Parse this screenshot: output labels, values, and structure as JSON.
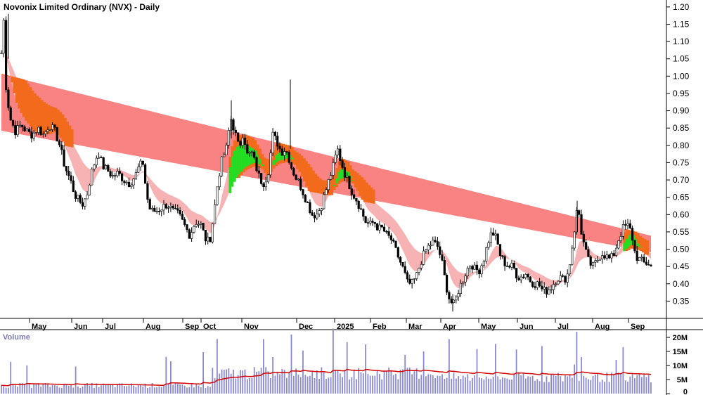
{
  "chart_data": {
    "type": "candlestick",
    "title": "Novonix Limited Ordinary (NVX) - Daily",
    "y_ticks": [
      "1.20",
      "1.15",
      "1.10",
      "1.05",
      "1.00",
      "0.95",
      "0.90",
      "0.85",
      "0.80",
      "0.75",
      "0.70",
      "0.65",
      "0.60",
      "0.55",
      "0.50",
      "0.45",
      "0.40",
      "0.35"
    ],
    "ylim": [
      0.3,
      1.22
    ],
    "x_ticks": [
      "May",
      "Jun",
      "Jul",
      "Aug",
      "Sep",
      "Oct",
      "Nov",
      "Dec",
      "2025",
      "Feb",
      "Mar",
      "Apr",
      "May",
      "Jun",
      "Jul",
      "Aug",
      "Sep"
    ],
    "price_path": [
      [
        0,
        1.0
      ],
      [
        3,
        1.1
      ],
      [
        5,
        1.18
      ],
      [
        8,
        0.98
      ],
      [
        14,
        0.88
      ],
      [
        22,
        0.84
      ],
      [
        30,
        0.86
      ],
      [
        38,
        0.84
      ],
      [
        46,
        0.83
      ],
      [
        54,
        0.85
      ],
      [
        62,
        0.83
      ],
      [
        70,
        0.86
      ],
      [
        78,
        0.84
      ],
      [
        85,
        0.8
      ],
      [
        92,
        0.74
      ],
      [
        100,
        0.7
      ],
      [
        106,
        0.66
      ],
      [
        112,
        0.64
      ],
      [
        118,
        0.63
      ],
      [
        124,
        0.66
      ],
      [
        130,
        0.72
      ],
      [
        136,
        0.76
      ],
      [
        140,
        0.78
      ],
      [
        146,
        0.74
      ],
      [
        152,
        0.73
      ],
      [
        160,
        0.71
      ],
      [
        168,
        0.72
      ],
      [
        176,
        0.7
      ],
      [
        184,
        0.69
      ],
      [
        192,
        0.71
      ],
      [
        198,
        0.74
      ],
      [
        204,
        0.75
      ],
      [
        208,
        0.66
      ],
      [
        214,
        0.61
      ],
      [
        222,
        0.61
      ],
      [
        230,
        0.62
      ],
      [
        238,
        0.63
      ],
      [
        246,
        0.61
      ],
      [
        254,
        0.6
      ],
      [
        262,
        0.57
      ],
      [
        270,
        0.54
      ],
      [
        278,
        0.58
      ],
      [
        286,
        0.57
      ],
      [
        292,
        0.53
      ],
      [
        298,
        0.52
      ],
      [
        304,
        0.6
      ],
      [
        310,
        0.7
      ],
      [
        316,
        0.76
      ],
      [
        322,
        0.79
      ],
      [
        328,
        0.88
      ],
      [
        334,
        0.84
      ],
      [
        340,
        0.79
      ],
      [
        346,
        0.84
      ],
      [
        352,
        0.77
      ],
      [
        358,
        0.78
      ],
      [
        364,
        0.74
      ],
      [
        370,
        0.7
      ],
      [
        376,
        0.69
      ],
      [
        382,
        0.73
      ],
      [
        388,
        0.83
      ],
      [
        394,
        0.81
      ],
      [
        400,
        0.78
      ],
      [
        406,
        0.79
      ],
      [
        410,
        0.77
      ],
      [
        414,
        0.74
      ],
      [
        420,
        0.71
      ],
      [
        426,
        0.69
      ],
      [
        432,
        0.66
      ],
      [
        438,
        0.63
      ],
      [
        444,
        0.6
      ],
      [
        450,
        0.6
      ],
      [
        456,
        0.62
      ],
      [
        462,
        0.66
      ],
      [
        468,
        0.7
      ],
      [
        474,
        0.74
      ],
      [
        480,
        0.79
      ],
      [
        484,
        0.76
      ],
      [
        490,
        0.72
      ],
      [
        496,
        0.69
      ],
      [
        502,
        0.66
      ],
      [
        508,
        0.64
      ],
      [
        514,
        0.61
      ],
      [
        520,
        0.58
      ],
      [
        526,
        0.57
      ],
      [
        532,
        0.58
      ],
      [
        538,
        0.56
      ],
      [
        544,
        0.56
      ],
      [
        550,
        0.54
      ],
      [
        556,
        0.53
      ],
      [
        562,
        0.5
      ],
      [
        568,
        0.47
      ],
      [
        574,
        0.44
      ],
      [
        580,
        0.4
      ],
      [
        586,
        0.4
      ],
      [
        592,
        0.42
      ],
      [
        598,
        0.46
      ],
      [
        604,
        0.49
      ],
      [
        610,
        0.51
      ],
      [
        616,
        0.52
      ],
      [
        622,
        0.51
      ],
      [
        628,
        0.47
      ],
      [
        634,
        0.4
      ],
      [
        640,
        0.35
      ],
      [
        646,
        0.34
      ],
      [
        652,
        0.38
      ],
      [
        658,
        0.41
      ],
      [
        664,
        0.44
      ],
      [
        670,
        0.46
      ],
      [
        676,
        0.44
      ],
      [
        682,
        0.44
      ],
      [
        688,
        0.47
      ],
      [
        694,
        0.52
      ],
      [
        700,
        0.55
      ],
      [
        706,
        0.53
      ],
      [
        712,
        0.48
      ],
      [
        718,
        0.46
      ],
      [
        724,
        0.45
      ],
      [
        730,
        0.45
      ],
      [
        736,
        0.42
      ],
      [
        742,
        0.42
      ],
      [
        748,
        0.43
      ],
      [
        754,
        0.41
      ],
      [
        760,
        0.4
      ],
      [
        766,
        0.4
      ],
      [
        772,
        0.38
      ],
      [
        778,
        0.38
      ],
      [
        784,
        0.39
      ],
      [
        790,
        0.41
      ],
      [
        796,
        0.42
      ],
      [
        802,
        0.41
      ],
      [
        808,
        0.43
      ],
      [
        812,
        0.48
      ],
      [
        818,
        0.57
      ],
      [
        822,
        0.63
      ],
      [
        826,
        0.56
      ],
      [
        832,
        0.5
      ],
      [
        838,
        0.46
      ],
      [
        844,
        0.45
      ],
      [
        850,
        0.47
      ],
      [
        856,
        0.49
      ],
      [
        862,
        0.48
      ],
      [
        868,
        0.47
      ],
      [
        874,
        0.49
      ],
      [
        880,
        0.53
      ],
      [
        886,
        0.56
      ],
      [
        892,
        0.57
      ],
      [
        898,
        0.55
      ],
      [
        904,
        0.48
      ],
      [
        910,
        0.47
      ],
      [
        916,
        0.46
      ],
      [
        922,
        0.46
      ],
      [
        926,
        0.45
      ]
    ],
    "bands": {
      "long_term": {
        "color": "#f98282"
      },
      "short_term": {
        "color": "#f7b3b3"
      },
      "bullish_fill": "#22dd22",
      "crossover_fill": "#f26a1b"
    },
    "volume": {
      "title": "Volume",
      "y_ticks": [
        "20M",
        "15M",
        "10M",
        "5M",
        "0"
      ],
      "ylim": [
        0,
        22
      ],
      "bar_color": "#8a8ad2",
      "average_color": "#d60000"
    }
  }
}
